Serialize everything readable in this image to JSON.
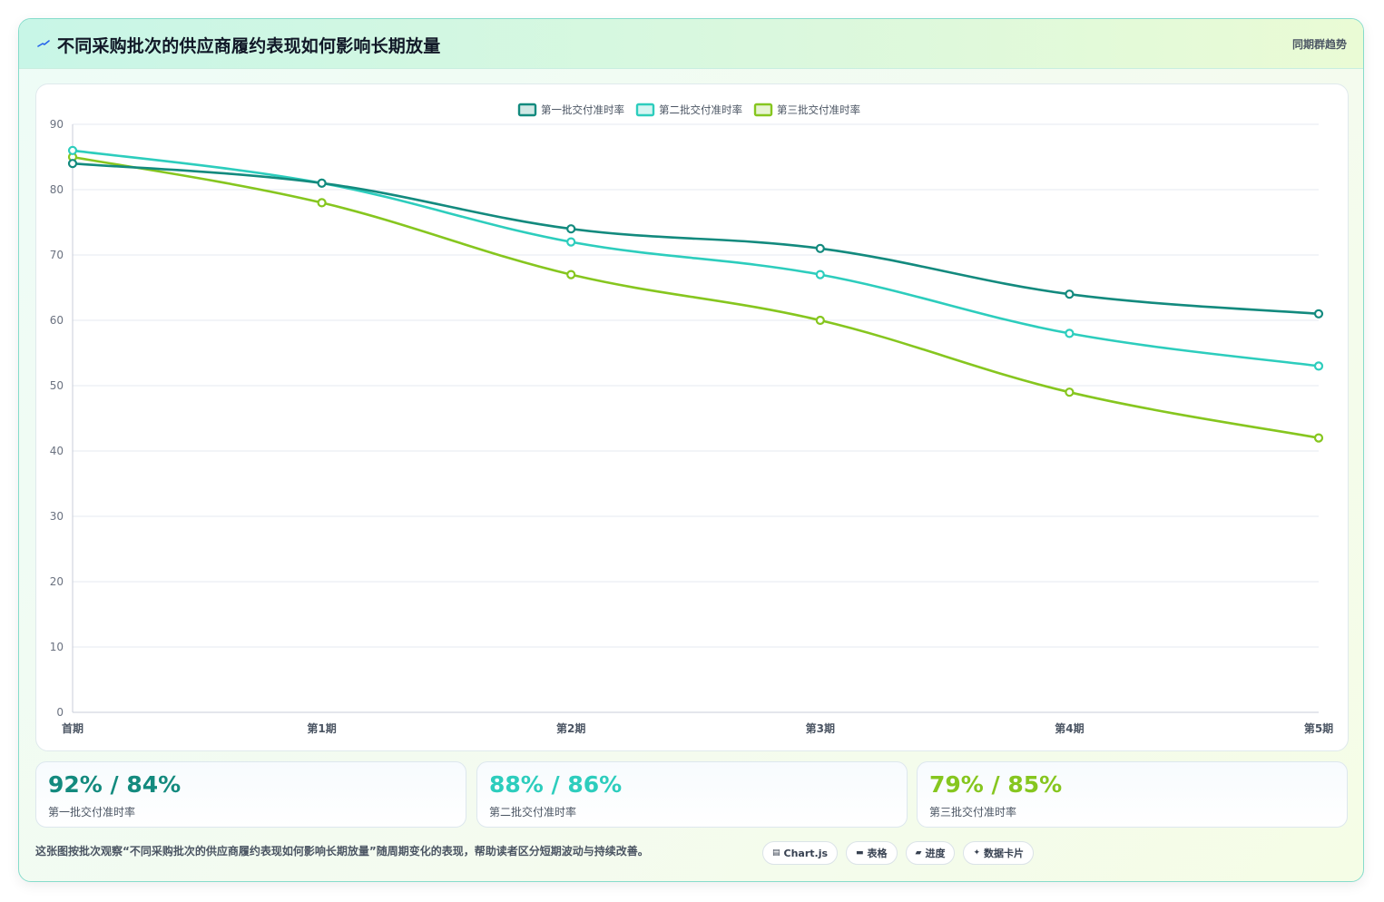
{
  "header": {
    "title": "不同采购批次的供应商履约表现如何影响长期放量",
    "tag": "同期群趋势",
    "icon": "trend-icon"
  },
  "colors": {
    "series": [
      "#138a7e",
      "#2dcdbd",
      "#86c61f"
    ],
    "grid": "#e5e9f2",
    "axis": "#c8ced8"
  },
  "chart_data": {
    "type": "line",
    "categories": [
      "首期",
      "第1期",
      "第2期",
      "第3期",
      "第4期",
      "第5期"
    ],
    "series": [
      {
        "name": "第一批交付准时率",
        "values": [
          84,
          81,
          74,
          71,
          64,
          61
        ]
      },
      {
        "name": "第二批交付准时率",
        "values": [
          86,
          81,
          72,
          67,
          58,
          53
        ]
      },
      {
        "name": "第三批交付准时率",
        "values": [
          85,
          78,
          67,
          60,
          49,
          42
        ]
      }
    ],
    "ylim": [
      0,
      90
    ],
    "yticks": [
      0,
      10,
      20,
      30,
      40,
      50,
      60,
      70,
      80,
      90
    ],
    "grid": true,
    "legend": "top-center"
  },
  "stats": [
    {
      "value": "92% / 84%",
      "label": "第一批交付准时率"
    },
    {
      "value": "88% / 86%",
      "label": "第二批交付准时率"
    },
    {
      "value": "79% / 85%",
      "label": "第三批交付准时率"
    }
  ],
  "footnote": "这张图按批次观察“不同采购批次的供应商履约表现如何影响长期放量”随周期变化的表现，帮助读者区分短期波动与持续改善。",
  "chips": [
    {
      "label": "Chart.js",
      "icon": "chart-icon",
      "glyph": "▤"
    },
    {
      "label": "表格",
      "icon": "table-icon",
      "glyph": "▬"
    },
    {
      "label": "进度",
      "icon": "progress-icon",
      "glyph": "▰"
    },
    {
      "label": "数据卡片",
      "icon": "sparkle-icon",
      "glyph": "✦"
    }
  ]
}
